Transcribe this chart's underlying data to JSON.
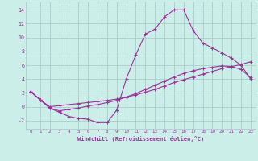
{
  "xlabel": "Windchill (Refroidissement éolien,°C)",
  "bg_color": "#cceee8",
  "grid_color": "#aacccc",
  "line_color": "#993399",
  "xlim": [
    -0.5,
    23.5
  ],
  "ylim": [
    -3.2,
    15.2
  ],
  "xticks": [
    0,
    1,
    2,
    3,
    4,
    5,
    6,
    7,
    8,
    9,
    10,
    11,
    12,
    13,
    14,
    15,
    16,
    17,
    18,
    19,
    20,
    21,
    22,
    23
  ],
  "yticks": [
    -2,
    0,
    2,
    4,
    6,
    8,
    10,
    12,
    14
  ],
  "line1_x": [
    0,
    1,
    2,
    3,
    4,
    5,
    6,
    7,
    8,
    9,
    10,
    11,
    12,
    13,
    14,
    15,
    16,
    17,
    18,
    19,
    20,
    21,
    22,
    23
  ],
  "line1_y": [
    2.2,
    1.0,
    -0.2,
    -0.8,
    -1.4,
    -1.7,
    -1.8,
    -2.3,
    -2.3,
    -0.5,
    4.0,
    7.5,
    10.5,
    11.2,
    13.0,
    14.0,
    14.0,
    11.0,
    9.2,
    8.5,
    7.8,
    7.0,
    6.0,
    4.0
  ],
  "line2_x": [
    0,
    1,
    2,
    3,
    4,
    5,
    6,
    7,
    8,
    9,
    10,
    11,
    12,
    13,
    14,
    15,
    16,
    17,
    18,
    19,
    20,
    21,
    22,
    23
  ],
  "line2_y": [
    2.2,
    1.0,
    0.0,
    0.15,
    0.3,
    0.45,
    0.6,
    0.75,
    0.9,
    1.1,
    1.4,
    1.7,
    2.1,
    2.5,
    3.0,
    3.5,
    3.9,
    4.3,
    4.7,
    5.1,
    5.5,
    5.8,
    6.1,
    6.5
  ],
  "line3_x": [
    0,
    1,
    2,
    3,
    4,
    5,
    6,
    7,
    8,
    9,
    10,
    11,
    12,
    13,
    14,
    15,
    16,
    17,
    18,
    19,
    20,
    21,
    22,
    23
  ],
  "line3_y": [
    2.2,
    1.0,
    -0.2,
    -0.6,
    -0.4,
    -0.2,
    0.1,
    0.3,
    0.6,
    0.9,
    1.4,
    1.9,
    2.5,
    3.1,
    3.7,
    4.3,
    4.8,
    5.2,
    5.5,
    5.7,
    5.9,
    5.8,
    5.4,
    4.2
  ]
}
